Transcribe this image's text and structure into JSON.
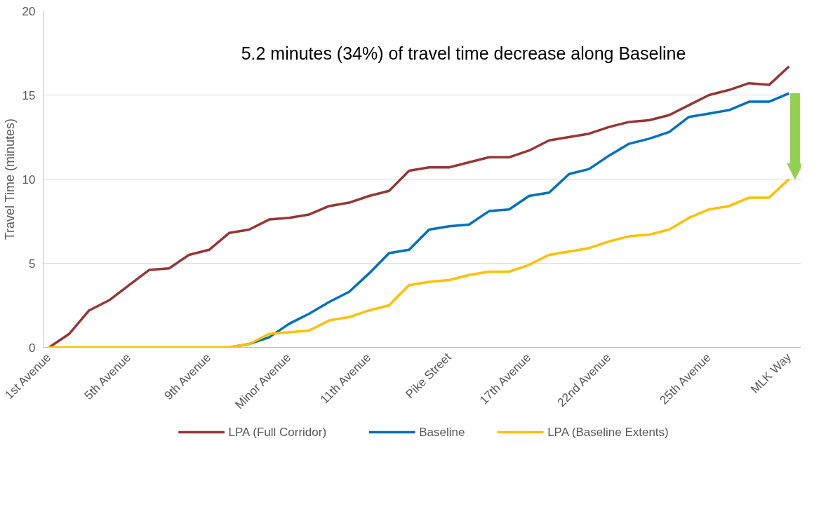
{
  "chart_data": {
    "type": "line",
    "categories": [
      "1st Avenue",
      null,
      null,
      null,
      "5th Avenue",
      null,
      null,
      null,
      "9th Avenue",
      null,
      null,
      null,
      "Minor Avenue",
      null,
      null,
      null,
      "11th Avenue",
      null,
      null,
      null,
      "Pike Street",
      null,
      null,
      null,
      "17th Avenue",
      null,
      null,
      null,
      "22nd Avenue",
      null,
      null,
      null,
      null,
      "25th Avenue",
      null,
      null,
      null,
      "MLK Way"
    ],
    "series": [
      {
        "name": "LPA (Full Corridor)",
        "color": "#953735",
        "values": [
          0,
          0.8,
          2.2,
          2.8,
          3.7,
          4.6,
          4.7,
          5.5,
          5.8,
          6.8,
          7.0,
          7.6,
          7.7,
          7.9,
          8.4,
          8.6,
          9.0,
          9.3,
          10.5,
          10.7,
          10.7,
          11.0,
          11.3,
          11.3,
          11.7,
          12.3,
          12.5,
          12.7,
          13.1,
          13.4,
          13.5,
          13.8,
          14.4,
          15.0,
          15.3,
          15.7,
          15.6,
          16.7
        ]
      },
      {
        "name": "Baseline",
        "color": "#0070c0",
        "values": [
          null,
          null,
          null,
          null,
          null,
          null,
          null,
          null,
          null,
          0,
          0.2,
          0.6,
          1.4,
          2.0,
          2.7,
          3.3,
          4.4,
          5.6,
          5.8,
          7.0,
          7.2,
          7.3,
          8.1,
          8.2,
          9.0,
          9.2,
          10.3,
          10.6,
          11.4,
          12.1,
          12.4,
          12.8,
          13.7,
          13.9,
          14.1,
          14.6,
          14.6,
          15.1
        ]
      },
      {
        "name": "LPA (Baseline Extents)",
        "color": "#ffc000",
        "values": [
          0,
          0,
          0,
          0,
          0,
          0,
          0,
          0,
          0,
          0,
          0.2,
          0.8,
          0.9,
          1.0,
          1.6,
          1.8,
          2.2,
          2.5,
          3.7,
          3.9,
          4.0,
          4.3,
          4.5,
          4.5,
          4.9,
          5.5,
          5.7,
          5.9,
          6.3,
          6.6,
          6.7,
          7.0,
          7.7,
          8.2,
          8.4,
          8.9,
          8.9,
          10.0
        ]
      }
    ],
    "ylabel": "Travel Time (minutes)",
    "ylim": [
      0,
      20
    ],
    "yticks": [
      0,
      5,
      10,
      15,
      20
    ],
    "grid": "y",
    "legend": "bottom",
    "line_style": "solid",
    "annotations": [
      "5.2 minutes (34%) of travel time decrease along Baseline"
    ]
  }
}
